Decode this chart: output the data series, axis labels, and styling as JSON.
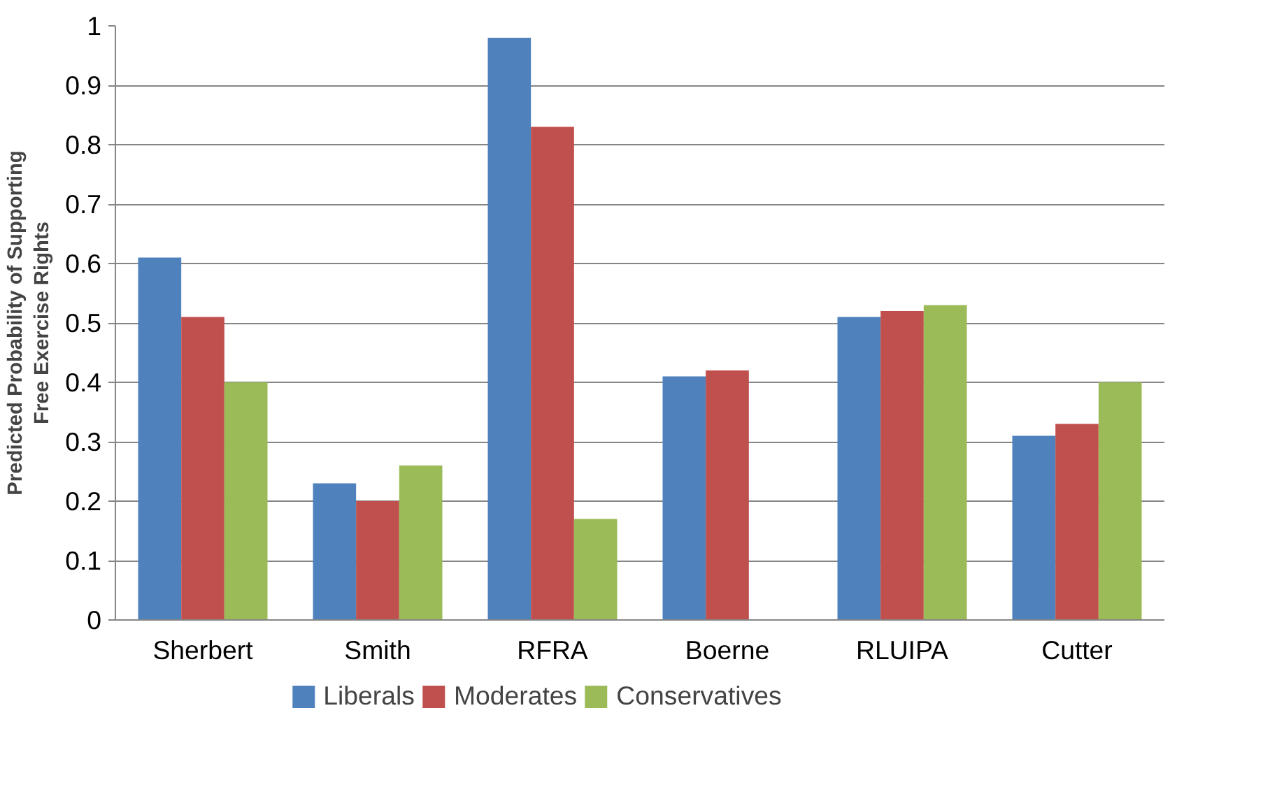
{
  "chart_data": {
    "type": "bar",
    "ylabel": "Predicted Probability of Supporting\nFree Exercise Rights",
    "categories": [
      "Sherbert",
      "Smith",
      "RFRA",
      "Boerne",
      "RLUIPA",
      "Cutter"
    ],
    "series": [
      {
        "name": "Liberals",
        "color": "#4f81bd",
        "values": [
          0.61,
          0.23,
          0.98,
          0.41,
          0.51,
          0.31
        ]
      },
      {
        "name": "Moderates",
        "color": "#c0504d",
        "values": [
          0.51,
          0.2,
          0.83,
          0.42,
          0.52,
          0.33
        ]
      },
      {
        "name": "Conservatives",
        "color": "#9bbb59",
        "values": [
          0.4,
          0.26,
          0.17,
          null,
          0.53,
          0.4
        ]
      }
    ],
    "ylim": [
      0,
      1
    ],
    "yticks": [
      0,
      0.1,
      0.2,
      0.3,
      0.4,
      0.5,
      0.6,
      0.7,
      0.8,
      0.9,
      1
    ],
    "grid": "y",
    "legend": "bottom"
  }
}
